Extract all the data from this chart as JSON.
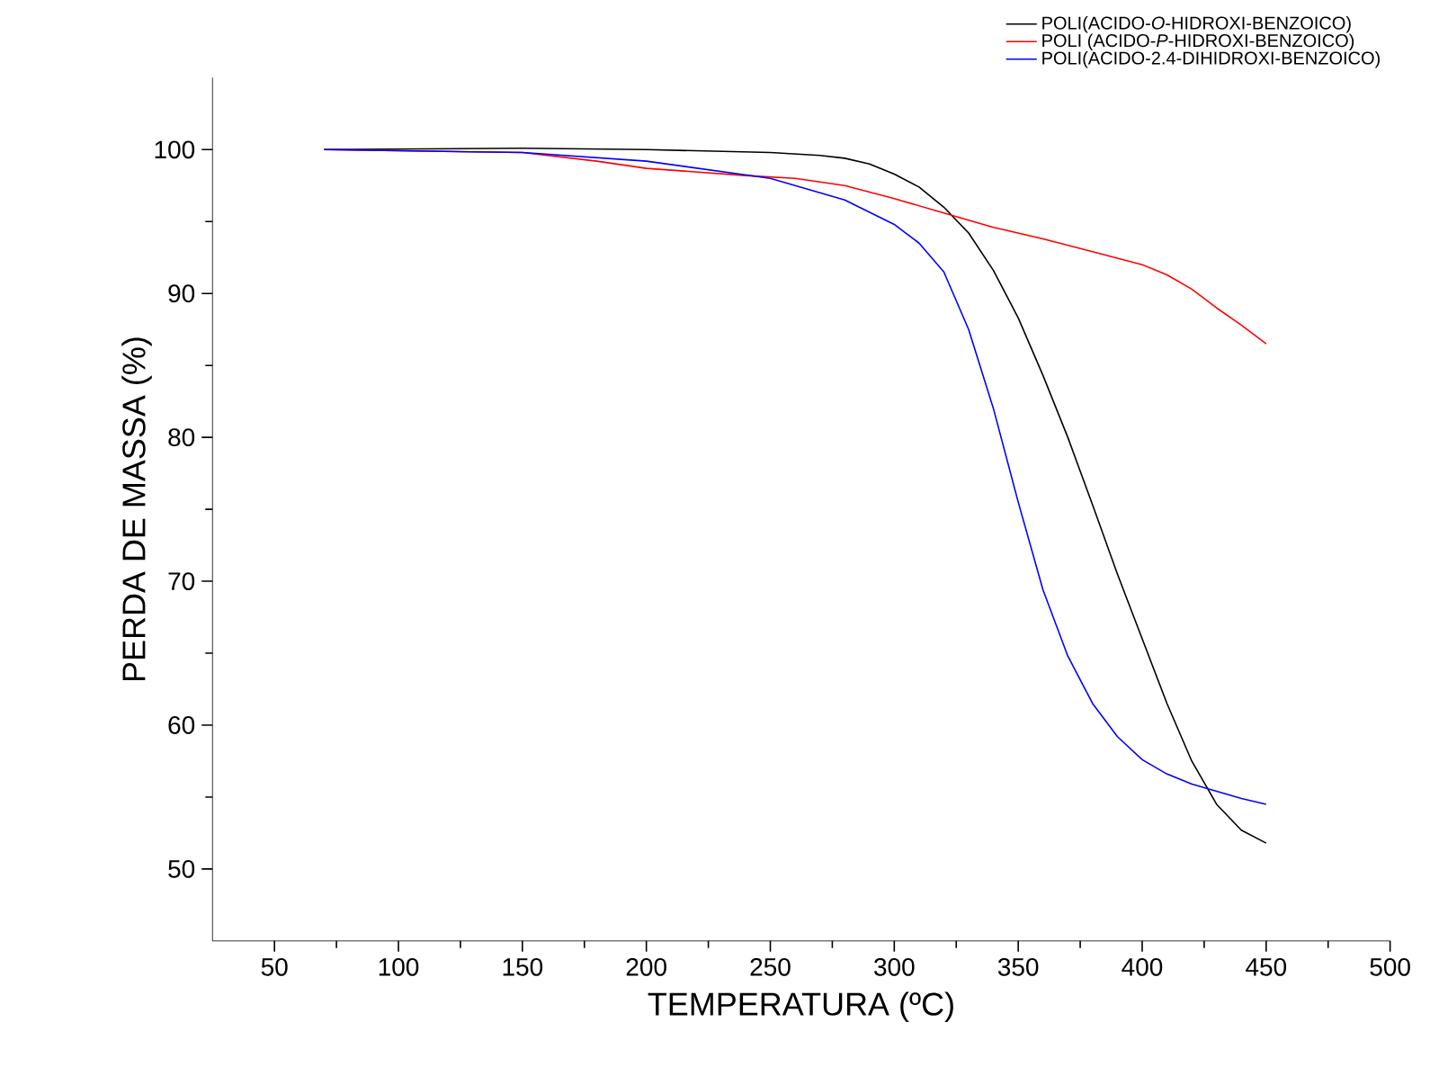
{
  "chart_data": {
    "type": "line",
    "xlabel": "TEMPERATURA (ºC)",
    "ylabel": "PERDA DE MASSA (%)",
    "xlim": [
      25,
      500
    ],
    "ylim": [
      45,
      105
    ],
    "xticks": [
      50,
      100,
      150,
      200,
      250,
      300,
      350,
      400,
      450,
      500
    ],
    "yticks": [
      50,
      60,
      70,
      80,
      90,
      100
    ],
    "legend": "top right",
    "grid": false,
    "line_style": "solid",
    "marker": "none",
    "series": [
      {
        "name": "POLI(ACIDO-*O*-HIDROXI-BENZOICO)",
        "color": "#000000",
        "x": [
          70,
          150,
          200,
          250,
          270,
          280,
          290,
          300,
          310,
          320,
          330,
          340,
          350,
          360,
          370,
          380,
          390,
          400,
          410,
          420,
          430,
          440,
          450
        ],
        "values": [
          100,
          100.1,
          100,
          99.8,
          99.6,
          99.4,
          99.0,
          98.3,
          97.4,
          96,
          94.2,
          91.6,
          88.3,
          84.3,
          80,
          75.3,
          70.5,
          66,
          61.5,
          57.5,
          54.5,
          52.7,
          51.8
        ]
      },
      {
        "name": "POLI (ACIDO-*P*-HIDROXI-BENZOICO)",
        "color": "#ff0000",
        "x": [
          70,
          150,
          180,
          200,
          240,
          260,
          280,
          300,
          320,
          340,
          360,
          380,
          400,
          410,
          420,
          430,
          440,
          450
        ],
        "values": [
          100,
          99.8,
          99.2,
          98.7,
          98.2,
          98,
          97.5,
          96.6,
          95.6,
          94.6,
          93.8,
          92.9,
          92,
          91.3,
          90.3,
          89,
          87.8,
          86.5
        ]
      },
      {
        "name": "POLI(ACIDO-2.4-DIHIDROXI-BENZOICO)",
        "color": "#0000ff",
        "x": [
          70,
          150,
          200,
          250,
          280,
          300,
          310,
          320,
          330,
          340,
          350,
          360,
          370,
          380,
          390,
          400,
          410,
          420,
          430,
          440,
          450
        ],
        "values": [
          100,
          99.8,
          99.2,
          98,
          96.5,
          94.8,
          93.5,
          91.5,
          87.5,
          82,
          75.5,
          69.4,
          64.8,
          61.5,
          59.2,
          57.6,
          56.6,
          55.9,
          55.4,
          54.9,
          54.5
        ]
      }
    ]
  }
}
